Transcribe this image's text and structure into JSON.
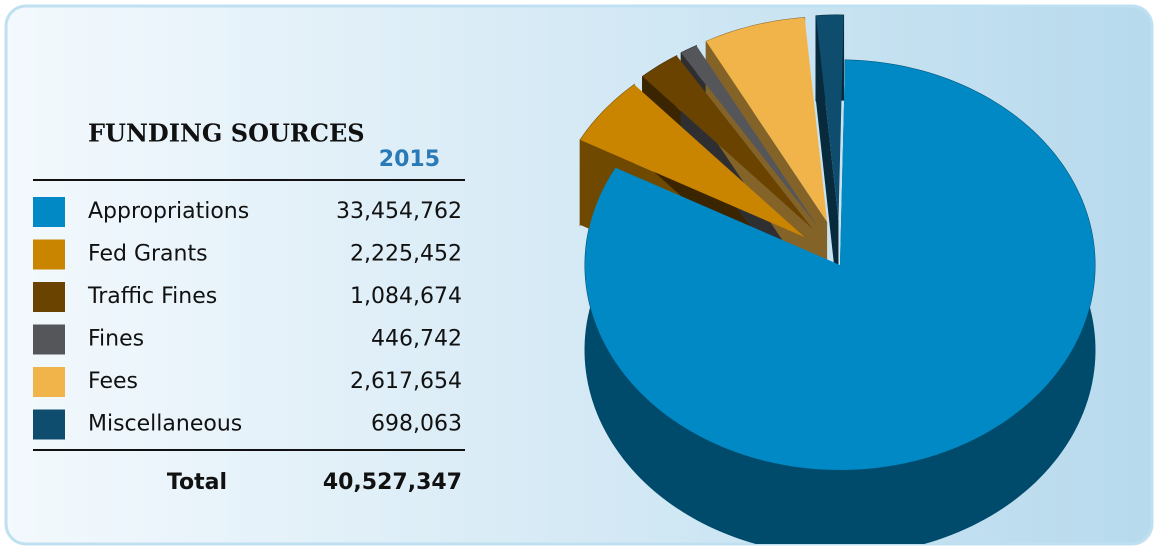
{
  "chart_data": {
    "type": "pie",
    "title": "FUNDING SOURCES",
    "column_header": "2015",
    "categories": [
      "Appropriations",
      "Fed Grants",
      "Traffic Fines",
      "Fines",
      "Fees",
      "Miscellaneous"
    ],
    "values": [
      33454762,
      2225452,
      1084674,
      446742,
      2617654,
      698063
    ],
    "value_labels": [
      "33,454,762",
      "2,225,452",
      "1,084,674",
      "446,742",
      "2,617,654",
      "698,063"
    ],
    "colors": [
      "#0089c4",
      "#c98400",
      "#6b4300",
      "#55565a",
      "#f0b44a",
      "#0e4d6e"
    ],
    "total_label": "Total",
    "total": "40,527,347"
  }
}
